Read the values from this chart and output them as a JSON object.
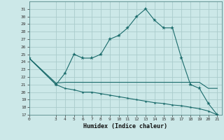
{
  "xlabel": "Humidex (Indice chaleur)",
  "bg_color": "#cce8e8",
  "grid_color": "#aacccc",
  "line_color": "#1a6b6b",
  "ylim": [
    17,
    32
  ],
  "xlim": [
    0,
    21.5
  ],
  "yticks": [
    17,
    18,
    19,
    20,
    21,
    22,
    23,
    24,
    25,
    26,
    27,
    28,
    29,
    30,
    31
  ],
  "xticks": [
    0,
    3,
    4,
    5,
    6,
    7,
    8,
    9,
    10,
    11,
    12,
    13,
    14,
    15,
    16,
    17,
    18,
    19,
    20,
    21
  ],
  "curve1_x": [
    0,
    3,
    4,
    5,
    6,
    7,
    8,
    9,
    10,
    11,
    12,
    13,
    14,
    15,
    16,
    17,
    18,
    19,
    20,
    21
  ],
  "curve1_y": [
    24.5,
    21.0,
    22.5,
    25.0,
    24.5,
    24.5,
    25.0,
    27.0,
    27.5,
    28.5,
    30.0,
    31.0,
    29.5,
    28.5,
    28.5,
    24.5,
    21.0,
    20.5,
    18.5,
    17.0
  ],
  "curve2_x": [
    0,
    3,
    4,
    5,
    6,
    7,
    8,
    9,
    10,
    11,
    12,
    13,
    14,
    15,
    16,
    17,
    18,
    19,
    20,
    21
  ],
  "curve2_y": [
    24.5,
    21.2,
    21.3,
    21.3,
    21.3,
    21.3,
    21.3,
    21.3,
    21.3,
    21.3,
    21.3,
    21.3,
    21.3,
    21.3,
    21.3,
    21.3,
    21.3,
    21.3,
    20.5,
    20.5
  ],
  "curve3_x": [
    0,
    3,
    4,
    5,
    6,
    7,
    8,
    9,
    10,
    11,
    12,
    13,
    14,
    15,
    16,
    17,
    18,
    19,
    20,
    21
  ],
  "curve3_y": [
    24.5,
    21.0,
    20.5,
    20.3,
    20.0,
    20.0,
    19.8,
    19.6,
    19.4,
    19.2,
    19.0,
    18.8,
    18.6,
    18.5,
    18.3,
    18.2,
    18.0,
    17.8,
    17.5,
    17.0
  ]
}
